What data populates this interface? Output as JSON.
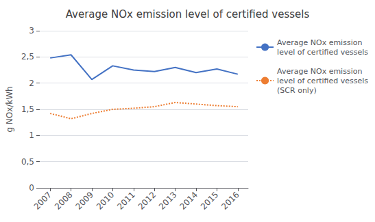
{
  "chart_data": {
    "type": "line",
    "title": "Average NOx emission level of certified vessels",
    "ylabel": "g NOx/kWh",
    "x": [
      2007,
      2008,
      2009,
      2010,
      2011,
      2012,
      2013,
      2014,
      2015,
      2016
    ],
    "series": [
      {
        "name": "Average NOx emission\nlevel of certified vessels",
        "color": "#4472C4",
        "line_style": "solid",
        "values": [
          2.48,
          2.54,
          2.07,
          2.33,
          2.25,
          2.22,
          2.3,
          2.2,
          2.27,
          2.17
        ]
      },
      {
        "name": "Average NOx emission\nlevel of certified vessels\n(SCR only)",
        "color": "#ED7D31",
        "line_style": "dotted",
        "values": [
          1.42,
          1.32,
          1.42,
          1.5,
          1.52,
          1.55,
          1.63,
          1.6,
          1.57,
          1.55
        ]
      }
    ],
    "xlim": [
      2006.5,
      2016.5
    ],
    "xticks": [
      2007,
      2008,
      2009,
      2010,
      2011,
      2012,
      2013,
      2014,
      2015,
      2016
    ],
    "ylim": [
      0,
      3.0
    ],
    "yticks": [
      0,
      {
        "value": 0.5,
        "label": "0,5"
      },
      1,
      {
        "value": 1.5,
        "label": "1,5"
      },
      2,
      {
        "value": 2.5,
        "label": "2,5"
      },
      3
    ],
    "grid": true,
    "legend": "right"
  }
}
